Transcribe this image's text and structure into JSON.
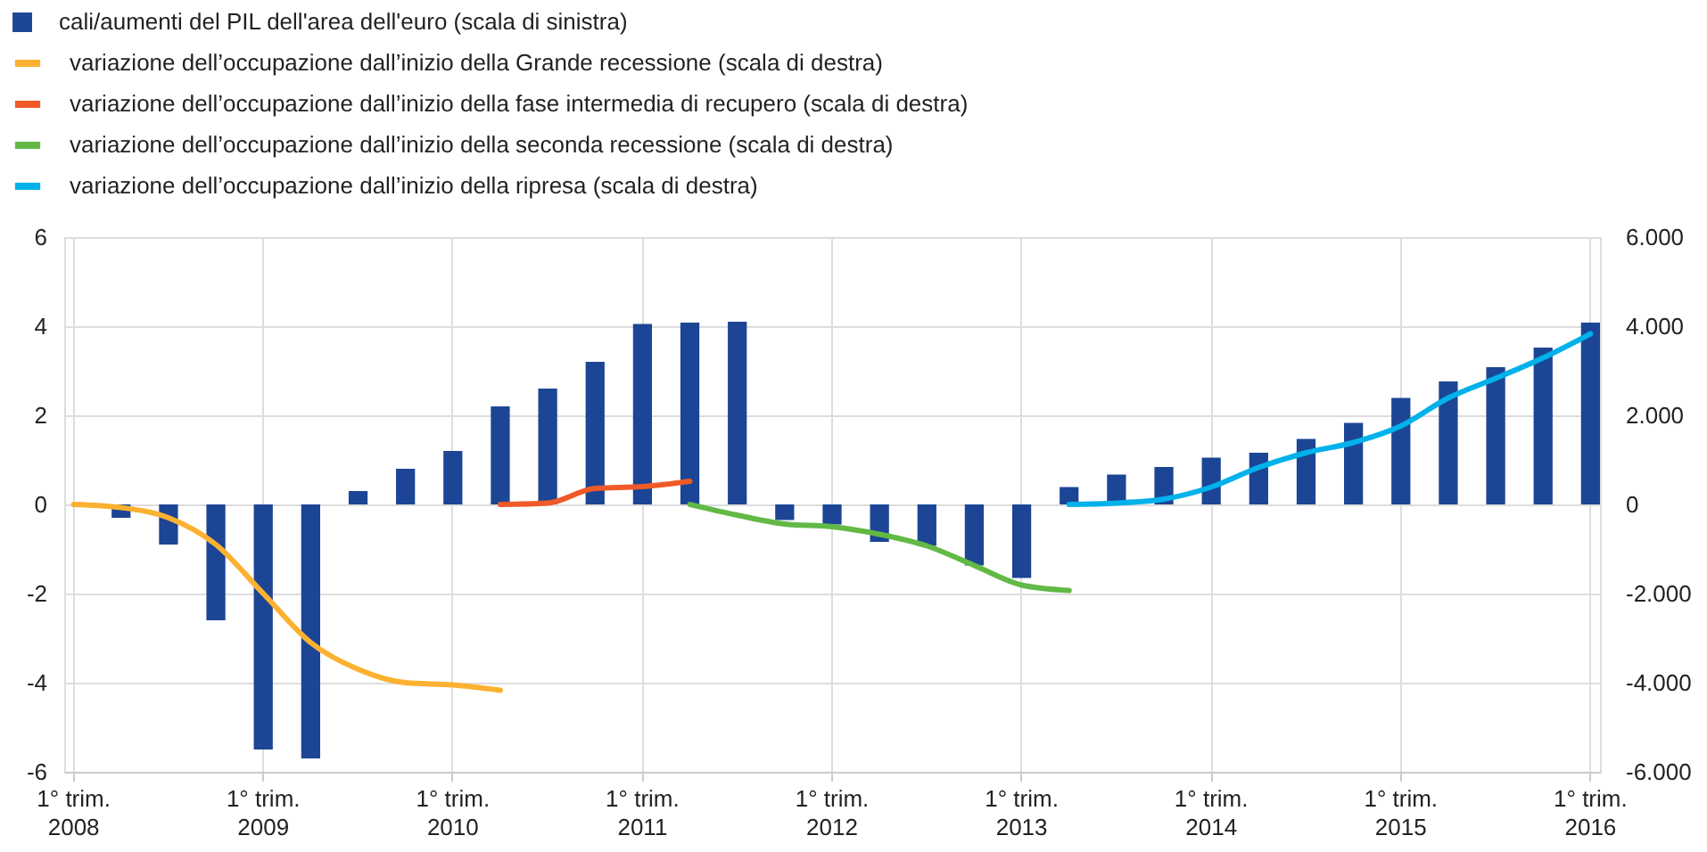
{
  "chart_data": {
    "type": "bar",
    "legend": "top left",
    "grid": true,
    "categories": [
      "1° trim.\n2008",
      null,
      null,
      null,
      "1° trim.\n2009",
      null,
      null,
      null,
      "1° trim.\n2010",
      null,
      null,
      null,
      "1° trim.\n2011",
      null,
      null,
      null,
      "1° trim.\n2012",
      null,
      null,
      null,
      "1° trim.\n2013",
      null,
      null,
      null,
      "1° trim.\n2014",
      null,
      null,
      null,
      "1° trim.\n2015",
      null,
      null,
      null,
      "1° trim.\n2016"
    ],
    "ylim": [
      -6,
      6
    ],
    "yticks": [
      -6,
      -4,
      -2,
      0,
      2,
      4,
      6
    ],
    "y2lim": [
      -6000,
      6000
    ],
    "y2ticks": [
      {
        "value": -6000,
        "label": "-6.000"
      },
      {
        "value": -4000,
        "label": "-4.000"
      },
      {
        "value": -2000,
        "label": "-2.000"
      },
      {
        "value": 0,
        "label": "0"
      },
      {
        "value": 2000,
        "label": "2.000"
      },
      {
        "value": 4000,
        "label": "4.000"
      },
      {
        "value": 6000,
        "label": "6.000"
      }
    ],
    "series": [
      {
        "name": "cali/aumenti del PIL dell'area dell'euro (scala di sinistra)",
        "color": "#1c4595",
        "values": [
          null,
          -0.3,
          -0.9,
          -2.6,
          -5.5,
          -5.7,
          0.3,
          0.8,
          1.2,
          2.2,
          2.6,
          3.2,
          4.05,
          4.08,
          4.1,
          -0.35,
          -0.45,
          -0.84,
          -0.93,
          -1.37,
          -1.65,
          0.39,
          0.67,
          0.84,
          1.05,
          1.16,
          1.47,
          1.83,
          2.39,
          2.76,
          3.08,
          3.52,
          4.08
        ]
      },
      {
        "name": "variazione dell’occupazione dall’inizio della Grande recessione (scala di destra)",
        "type": "line",
        "axis": "y2",
        "color": "#fbb131",
        "values": [
          0,
          -70,
          -300,
          -900,
          -2000,
          -3100,
          -3700,
          -4000,
          -4050,
          -4170,
          null,
          null,
          null,
          null,
          null,
          null,
          null,
          null,
          null,
          null,
          null,
          null,
          null,
          null,
          null,
          null,
          null,
          null,
          null,
          null,
          null,
          null,
          null
        ]
      },
      {
        "name": "variazione dell’occupazione dall’inizio della fase intermedia di recupero (scala di destra)",
        "type": "line",
        "axis": "y2",
        "color": "#f05a28",
        "values": [
          null,
          null,
          null,
          null,
          null,
          null,
          null,
          null,
          null,
          0,
          30,
          360,
          400,
          520,
          null,
          null,
          null,
          null,
          null,
          null,
          null,
          null,
          null,
          null,
          null,
          null,
          null,
          null,
          null,
          null,
          null,
          null,
          null
        ]
      },
      {
        "name": "variazione dell’occupazione dall’inizio della seconda recessione (scala di destra)",
        "type": "line",
        "axis": "y2",
        "color": "#62b946",
        "values": [
          null,
          null,
          null,
          null,
          null,
          null,
          null,
          null,
          null,
          null,
          null,
          null,
          null,
          0,
          -240,
          -440,
          -500,
          -670,
          -930,
          -1370,
          -1810,
          -1930,
          null,
          null,
          null,
          null,
          null,
          null,
          null,
          null,
          null,
          null,
          null
        ]
      },
      {
        "name": "variazione dell’occupazione dall’inizio della ripresa (scala di destra)",
        "type": "line",
        "axis": "y2",
        "color": "#00b1ea",
        "values": [
          null,
          null,
          null,
          null,
          null,
          null,
          null,
          null,
          null,
          null,
          null,
          null,
          null,
          null,
          null,
          null,
          null,
          null,
          null,
          null,
          null,
          0,
          30,
          120,
          390,
          830,
          1160,
          1390,
          1760,
          2390,
          2830,
          3290,
          3830
        ]
      }
    ]
  }
}
